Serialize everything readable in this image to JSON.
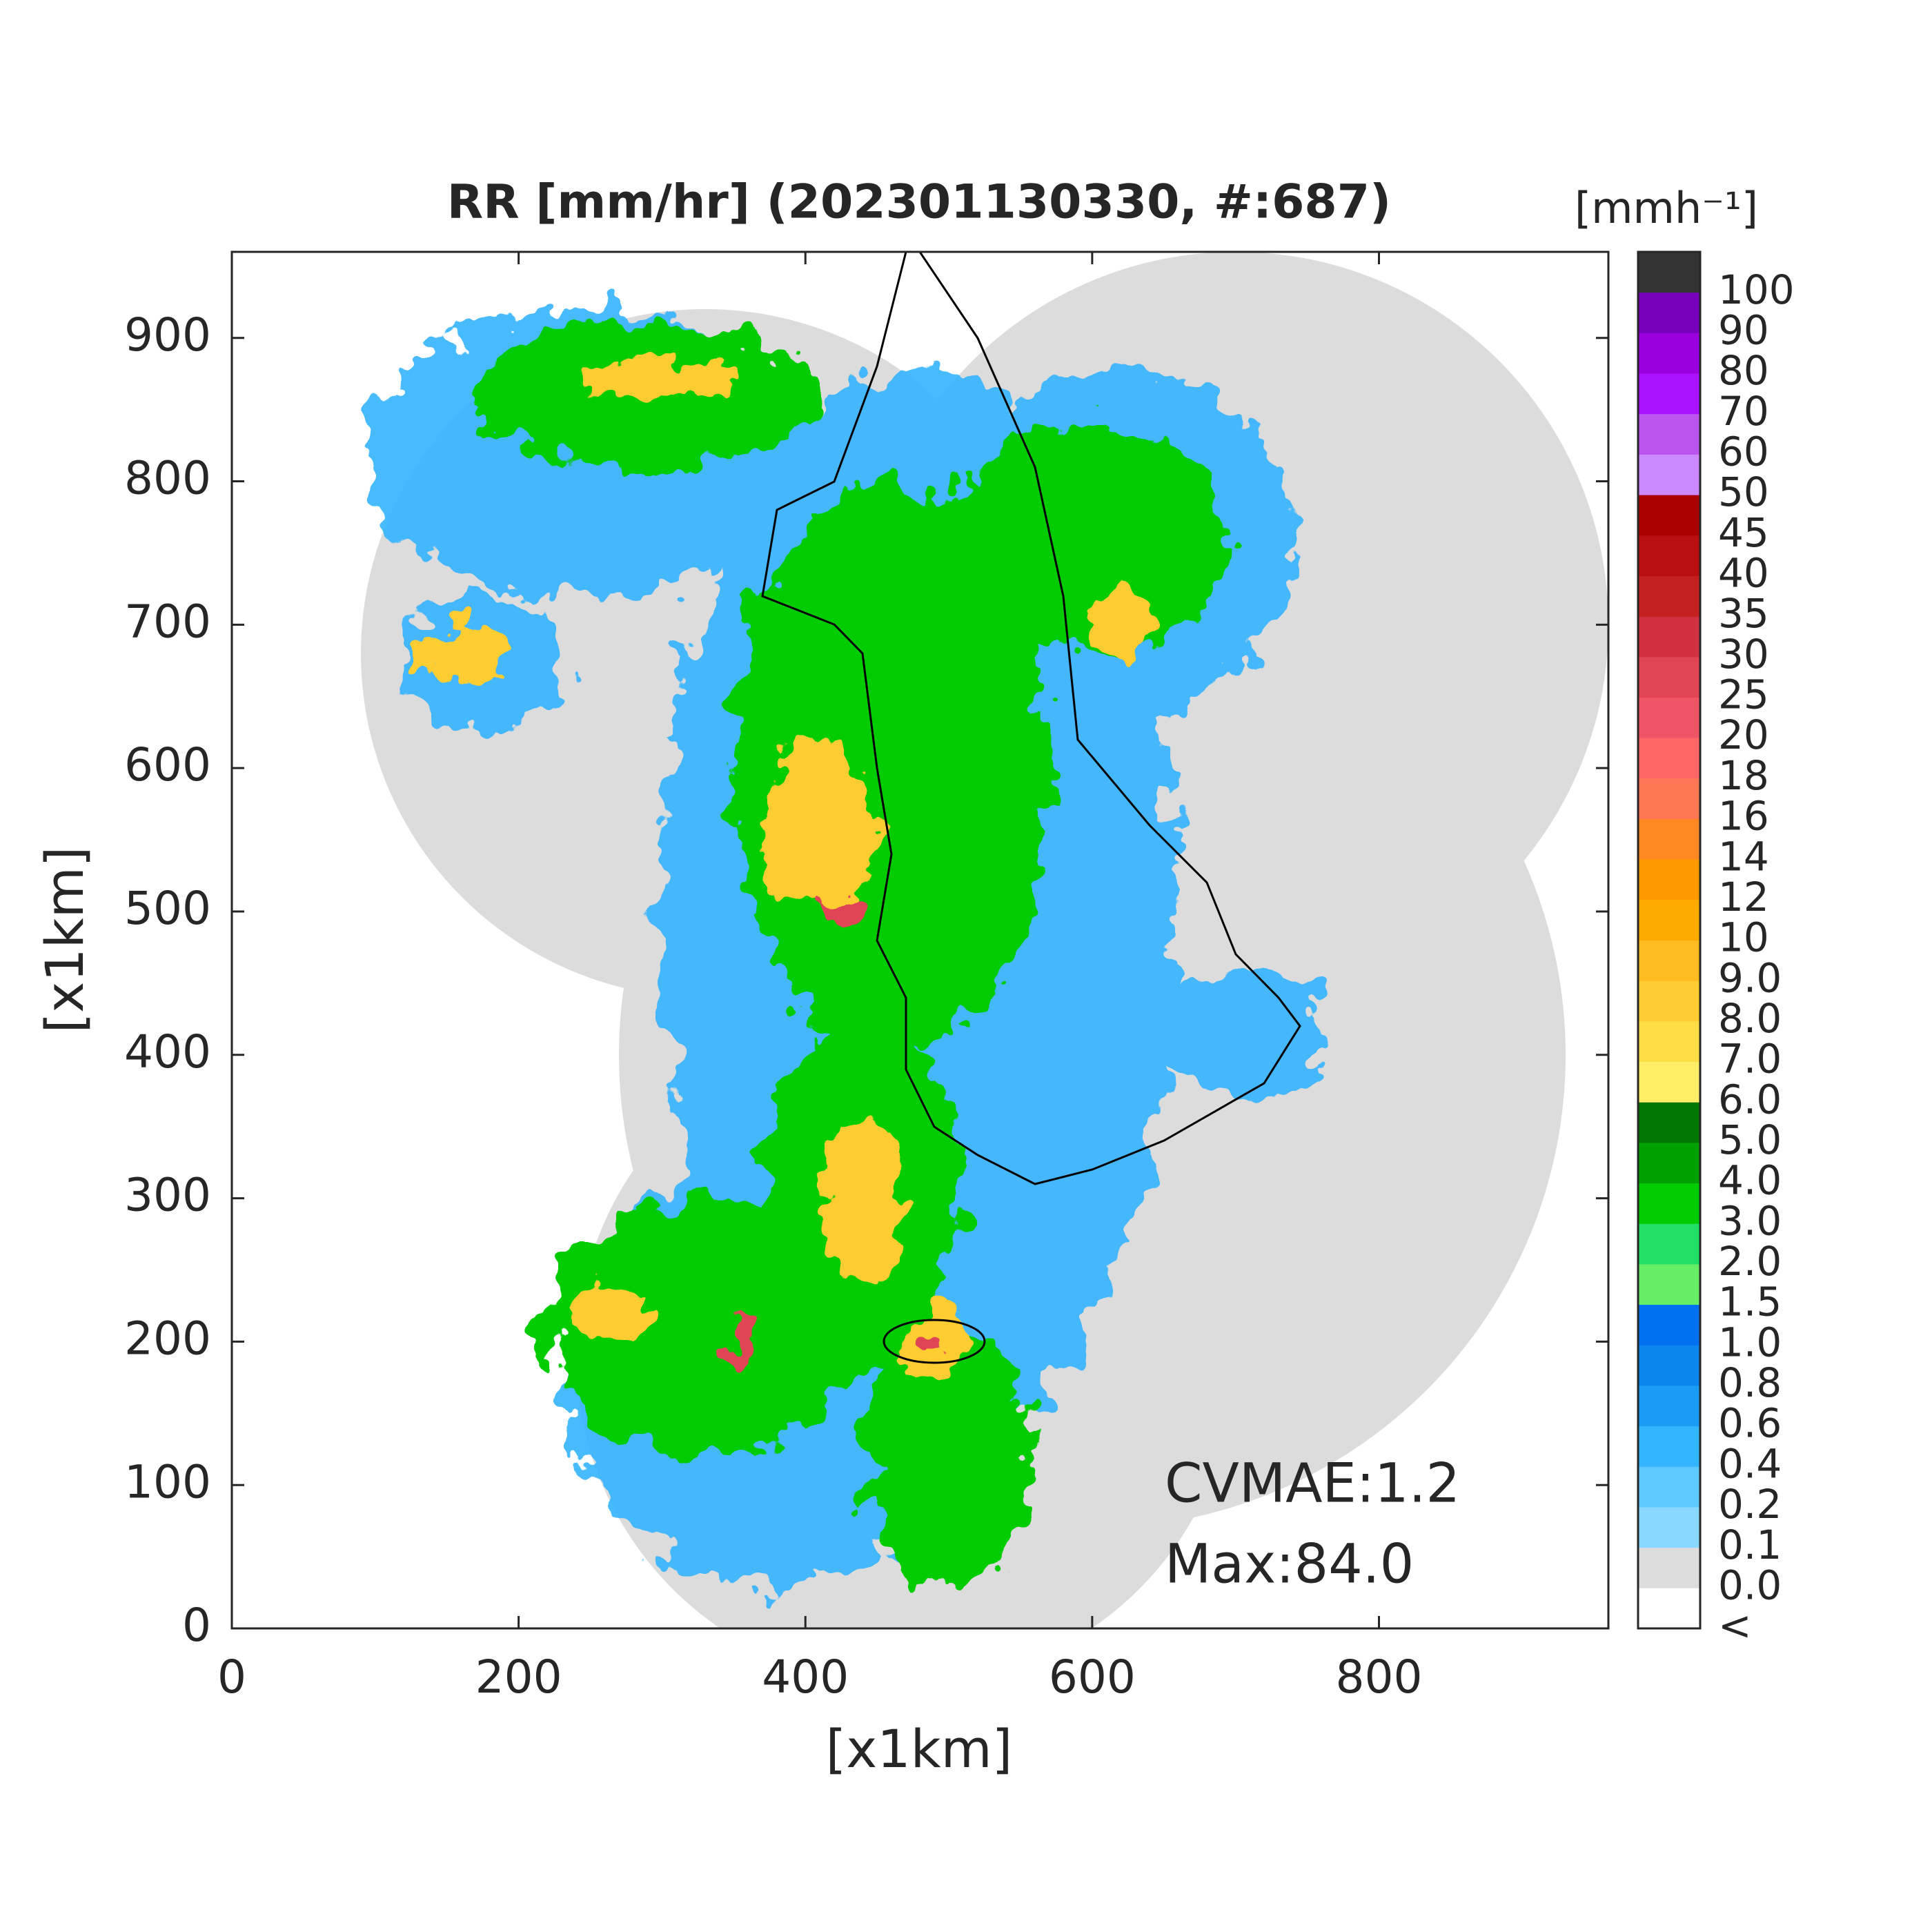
{
  "chart_data": {
    "type": "radar-map",
    "title": "RR [mm/hr] (202301130330, #:687)",
    "x_label": "[x1km]",
    "y_label": "[x1km]",
    "xlim": [
      0,
      960
    ],
    "ylim": [
      0,
      960
    ],
    "xticks": [
      0,
      200,
      400,
      600,
      800
    ],
    "yticks": [
      0,
      100,
      200,
      300,
      400,
      500,
      600,
      700,
      800,
      900
    ],
    "annotations": [
      "CVMAE:1.2",
      "Max:84.0"
    ],
    "colorbar": {
      "label": "[mmh⁻¹]",
      "labels": [
        "<",
        "0.0",
        "0.1",
        "0.2",
        "0.4",
        "0.6",
        "0.8",
        "1.0",
        "1.5",
        "2.0",
        "3.0",
        "4.0",
        "5.0",
        "6.0",
        "7.0",
        "8.0",
        "9.0",
        "10",
        "12",
        "14",
        "16",
        "18",
        "20",
        "25",
        "30",
        "35",
        "40",
        "45",
        "50",
        "60",
        "70",
        "80",
        "90",
        "100"
      ],
      "colors": [
        "#ffffff",
        "#dcdcdc",
        "#8ad8ff",
        "#5cc8ff",
        "#33b4ff",
        "#1a9cf5",
        "#0a86ec",
        "#0070f0",
        "#66ee66",
        "#22e066",
        "#00cc00",
        "#00a000",
        "#007800",
        "#ffee66",
        "#ffdd44",
        "#ffcc33",
        "#ffbb22",
        "#ffaa00",
        "#ff9900",
        "#ff8822",
        "#ff7755",
        "#ff6666",
        "#ee5566",
        "#e04455",
        "#d03040",
        "#c42020",
        "#b81010",
        "#aa0000",
        "#cc88ff",
        "#bb55ee",
        "#aa11ff",
        "#9900dd",
        "#7700bb",
        "#333333"
      ]
    }
  }
}
